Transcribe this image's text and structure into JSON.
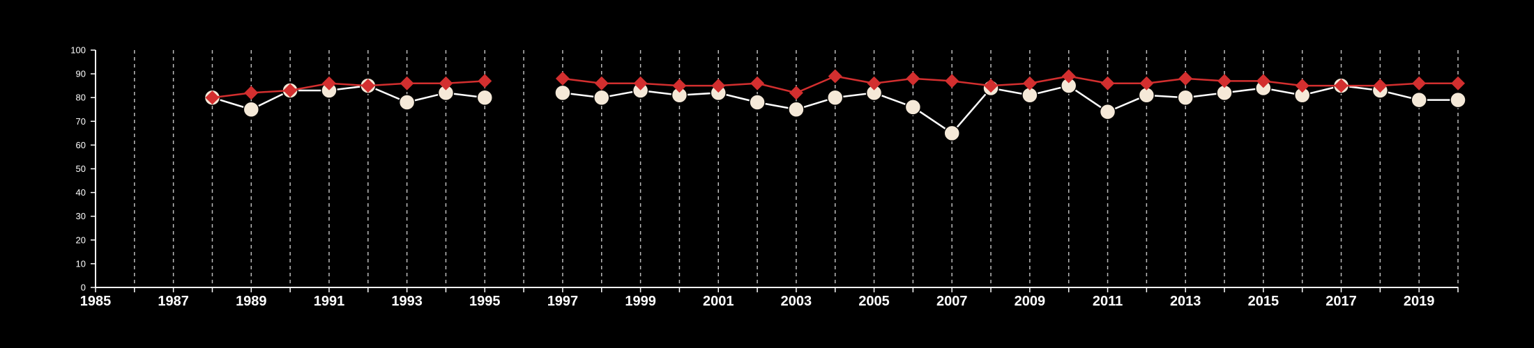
{
  "chart_data": {
    "type": "line",
    "title": "",
    "xlabel": "",
    "ylabel": "",
    "xlim": [
      1985,
      2020
    ],
    "ylim": [
      0,
      100
    ],
    "y_ticks": [
      0,
      10,
      20,
      30,
      40,
      50,
      60,
      70,
      80,
      90,
      100
    ],
    "x_ticks": [
      1985,
      1987,
      1989,
      1991,
      1993,
      1995,
      1997,
      1999,
      2001,
      2003,
      2005,
      2007,
      2009,
      2011,
      2013,
      2015,
      2017,
      2019
    ],
    "vertical_grid": "dashed, every year",
    "horizontal_grid": false,
    "legend": "none",
    "background": "#000000",
    "series": [
      {
        "marker": "circle",
        "color": "#ffffff",
        "marker_fill": "#f5e9d8",
        "x": [
          1988,
          1989,
          1990,
          1991,
          1992,
          1993,
          1994,
          1995,
          1997,
          1998,
          1999,
          2000,
          2001,
          2002,
          2003,
          2004,
          2005,
          2006,
          2007,
          2008,
          2009,
          2010,
          2011,
          2012,
          2013,
          2014,
          2015,
          2016,
          2017,
          2018,
          2019,
          2020
        ],
        "values": [
          80,
          75,
          83,
          83,
          85,
          78,
          82,
          80,
          82,
          80,
          83,
          81,
          82,
          78,
          75,
          80,
          82,
          76,
          65,
          84,
          81,
          85,
          74,
          81,
          80,
          82,
          84,
          81,
          85,
          83,
          79,
          79
        ]
      },
      {
        "marker": "diamond",
        "color": "#d32f2f",
        "marker_fill": "#d32f2f",
        "x": [
          1988,
          1989,
          1990,
          1991,
          1992,
          1993,
          1994,
          1995,
          1997,
          1998,
          1999,
          2000,
          2001,
          2002,
          2003,
          2004,
          2005,
          2006,
          2007,
          2008,
          2009,
          2010,
          2011,
          2012,
          2013,
          2014,
          2015,
          2016,
          2017,
          2018,
          2019,
          2020
        ],
        "values": [
          80,
          82,
          83,
          86,
          85,
          86,
          86,
          87,
          88,
          86,
          86,
          85,
          85,
          86,
          82,
          89,
          86,
          88,
          87,
          85,
          86,
          89,
          86,
          86,
          88,
          87,
          87,
          85,
          85,
          85,
          86,
          86
        ]
      }
    ]
  }
}
